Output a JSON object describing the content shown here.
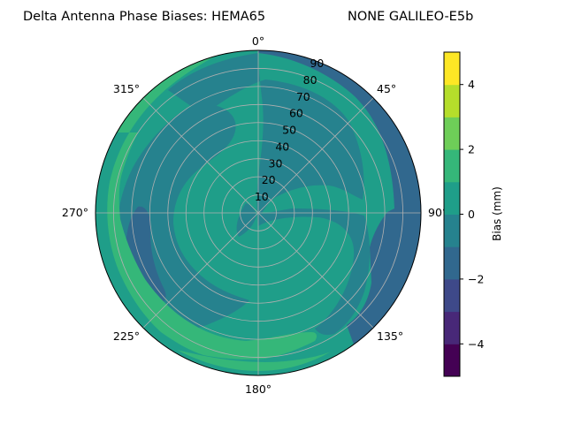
{
  "chart_data": {
    "type": "heatmap",
    "projection": "polar",
    "title": "Delta Antenna Phase Biases: HEMA65",
    "subtitle": "NONE GALILEO-E5b",
    "angular_ticks": [
      "0°",
      "45°",
      "90°",
      "135°",
      "180°",
      "225°",
      "270°",
      "315°"
    ],
    "radial_ticks": [
      "10",
      "20",
      "30",
      "40",
      "50",
      "60",
      "70",
      "80",
      "90"
    ],
    "radial_range": [
      0,
      90
    ],
    "grid": true,
    "colorbar": {
      "label": "Bias (mm)",
      "ticks": [
        "−4",
        "−2",
        "0",
        "2",
        "4"
      ],
      "range": [
        -5,
        5
      ],
      "levels": [
        -5,
        -4.5,
        -4,
        -3.5,
        -3,
        -2.5,
        -2,
        -1.5,
        -1,
        -0.5,
        0,
        0.5,
        1,
        1.5,
        2,
        2.5,
        3,
        3.5,
        4,
        4.5,
        5
      ],
      "colors": [
        "#440154",
        "#482878",
        "#3e4989",
        "#31688e",
        "#26828e",
        "#1f9e89",
        "#35b779",
        "#6ece58",
        "#b5de2b",
        "#fde725"
      ],
      "placement": "right"
    },
    "regions": [
      {
        "level": "0 to 1",
        "color": "#1f9e89",
        "zenith_deg": 90,
        "azimuth_deg": 0
      },
      {
        "level": "-1 to 0",
        "color": "#26828e",
        "zenith_deg": 45,
        "azimuth_deg": 0
      },
      {
        "level": "-2 to -1",
        "color": "#31688e",
        "zenith_deg": 80,
        "azimuth_deg": 30
      },
      {
        "level": "-1 to 0",
        "color": "#26828e",
        "zenith_deg": 50,
        "azimuth_deg": 285
      },
      {
        "level": "-2 to -1",
        "color": "#31688e",
        "zenith_deg": 70,
        "azimuth_deg": 250
      },
      {
        "level": "1 to 2",
        "color": "#35b779",
        "zenith_deg": 85,
        "azimuth_deg": 270
      },
      {
        "level": "1 to 2",
        "color": "#35b779",
        "zenith_deg": 85,
        "azimuth_deg": 190
      },
      {
        "level": "-1 to 0",
        "color": "#26828e",
        "zenith_deg": 50,
        "azimuth_deg": 90
      },
      {
        "level": "-1 to 0",
        "color": "#26828e",
        "zenith_deg": 75,
        "azimuth_deg": 145
      }
    ]
  }
}
